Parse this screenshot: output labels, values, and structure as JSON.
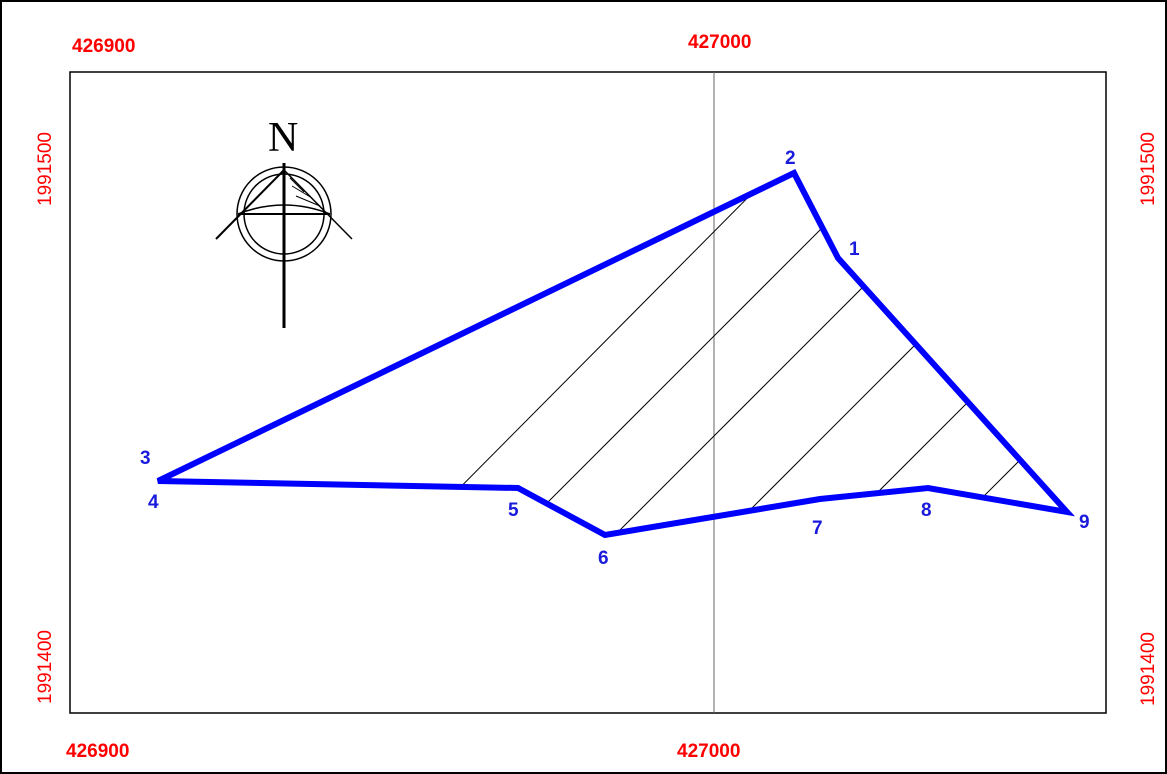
{
  "grid": {
    "x_labels": {
      "left": "426900",
      "center": "427000"
    },
    "y_labels": {
      "top": "1991500",
      "bottom": "1991400"
    }
  },
  "north_arrow": {
    "letter": "N"
  },
  "parcel": {
    "boundary_color": "#0000ff",
    "vertex_labels": [
      "1",
      "2",
      "3",
      "4",
      "5",
      "6",
      "7",
      "8",
      "9"
    ]
  },
  "colors": {
    "grid_label": "#ff0000",
    "boundary": "#0000ff",
    "vertex_label": "#1a1adc",
    "frame": "#000000"
  }
}
